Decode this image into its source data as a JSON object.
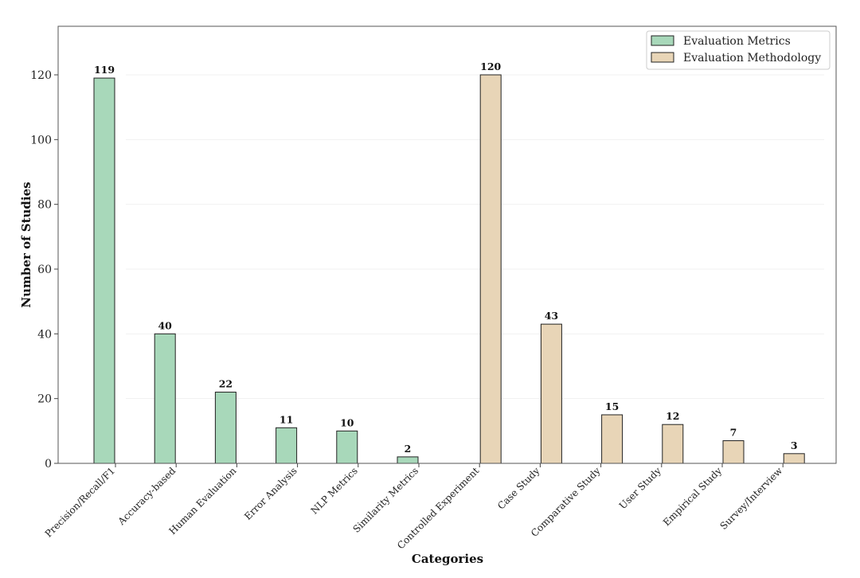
{
  "chart_data": {
    "type": "bar",
    "title": "",
    "xlabel": "Categories",
    "ylabel": "Number of Studies",
    "ylim": [
      0,
      135
    ],
    "yticks": [
      0,
      20,
      40,
      60,
      80,
      100,
      120
    ],
    "grid": true,
    "legend_position": "top-right",
    "categories": [
      "Precision/Recall/F1",
      "Accuracy-based",
      "Human Evaluation",
      "Error Analysis",
      "NLP Metrics",
      "Similarity Metrics",
      "Controlled Experiment",
      "Case Study",
      "Comparative Study",
      "User Study",
      "Empirical Study",
      "Survey/Interview"
    ],
    "series": [
      {
        "name": "Evaluation Metrics",
        "color": "#a8d8ba",
        "values": [
          119,
          40,
          22,
          11,
          10,
          2,
          0,
          0,
          0,
          0,
          0,
          0
        ]
      },
      {
        "name": "Evaluation Methodology",
        "color": "#e8d5b7",
        "values": [
          0,
          0,
          0,
          0,
          0,
          0,
          120,
          43,
          15,
          12,
          7,
          3
        ]
      }
    ]
  }
}
